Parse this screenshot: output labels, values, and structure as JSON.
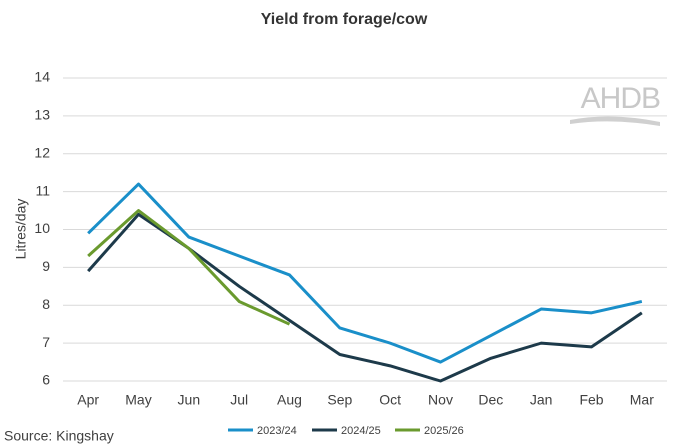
{
  "chart_data": {
    "type": "line",
    "title": "Yield from forage/cow",
    "y_label": "Litres/day",
    "source": "Source: Kingshay",
    "logo": "AHDB",
    "categories": [
      "Apr",
      "May",
      "Jun",
      "Jul",
      "Aug",
      "Sep",
      "Oct",
      "Nov",
      "Dec",
      "Jan",
      "Feb",
      "Mar"
    ],
    "series": [
      {
        "name": "2023/24",
        "color": "#1a8fc9",
        "values": [
          9.9,
          11.2,
          9.8,
          9.3,
          8.8,
          7.4,
          7.0,
          6.5,
          7.2,
          7.9,
          7.8,
          8.1
        ]
      },
      {
        "name": "2024/25",
        "color": "#1d3a4a",
        "values": [
          8.9,
          10.4,
          9.5,
          8.5,
          7.6,
          6.7,
          6.4,
          6.0,
          6.6,
          7.0,
          6.9,
          7.8
        ]
      },
      {
        "name": "2025/26",
        "color": "#6a9a2e",
        "values": [
          9.3,
          10.5,
          9.5,
          8.1,
          7.5,
          null,
          null,
          null,
          null,
          null,
          null,
          null
        ]
      }
    ],
    "ylim": [
      6,
      14
    ],
    "yticks": [
      6,
      7,
      8,
      9,
      10,
      11,
      12,
      13,
      14
    ],
    "grid": true
  }
}
